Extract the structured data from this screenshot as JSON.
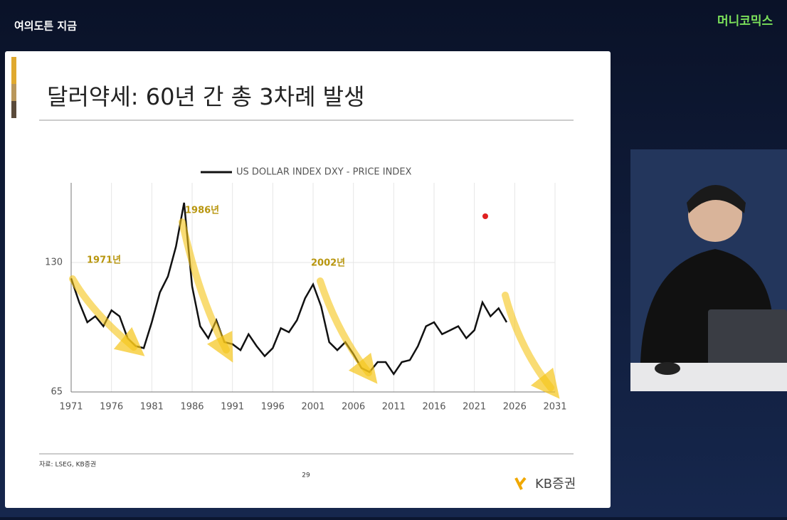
{
  "header": {
    "channel": "여의도튼 지금",
    "brand": "머니코믹스"
  },
  "slide": {
    "title": "달러약세: 60년 간 총 3차례 발생",
    "source": "자료: LSEG, KB증권",
    "page": 29,
    "logo": "KB증권"
  },
  "chart_data": {
    "type": "line",
    "x": [
      1971,
      1972,
      1973,
      1974,
      1975,
      1976,
      1977,
      1978,
      1979,
      1980,
      1981,
      1982,
      1983,
      1984,
      1985,
      1986,
      1987,
      1988,
      1989,
      1990,
      1991,
      1992,
      1993,
      1994,
      1995,
      1996,
      1997,
      1998,
      1999,
      2000,
      2001,
      2002,
      2003,
      2004,
      2005,
      2006,
      2007,
      2008,
      2009,
      2010,
      2011,
      2012,
      2013,
      2014,
      2015,
      2016,
      2017,
      2018,
      2019,
      2020,
      2021,
      2022,
      2023,
      2024,
      2025
    ],
    "series": [
      {
        "name": "US DOLLAR INDEX DXY - PRICE INDEX",
        "color": "#111111",
        "values": [
          122,
          110,
          100,
          103,
          98,
          106,
          103,
          92,
          88,
          87,
          100,
          115,
          123,
          138,
          160,
          118,
          98,
          92,
          101,
          90,
          89,
          86,
          94,
          88,
          83,
          87,
          97,
          95,
          101,
          112,
          119,
          108,
          90,
          86,
          90,
          84,
          77,
          75,
          80,
          80,
          74,
          80,
          81,
          88,
          98,
          100,
          94,
          96,
          98,
          92,
          96,
          110,
          103,
          107,
          100
        ]
      }
    ],
    "xlim": [
      1971,
      2031
    ],
    "xticks": [
      1971,
      1976,
      1981,
      1986,
      1991,
      1996,
      2001,
      2006,
      2011,
      2016,
      2021,
      2026,
      2031
    ],
    "ylim": [
      65,
      170
    ],
    "yticks": [
      65,
      130
    ],
    "grid": true,
    "annotations": [
      "1971년",
      "1986년",
      "2002년"
    ]
  }
}
